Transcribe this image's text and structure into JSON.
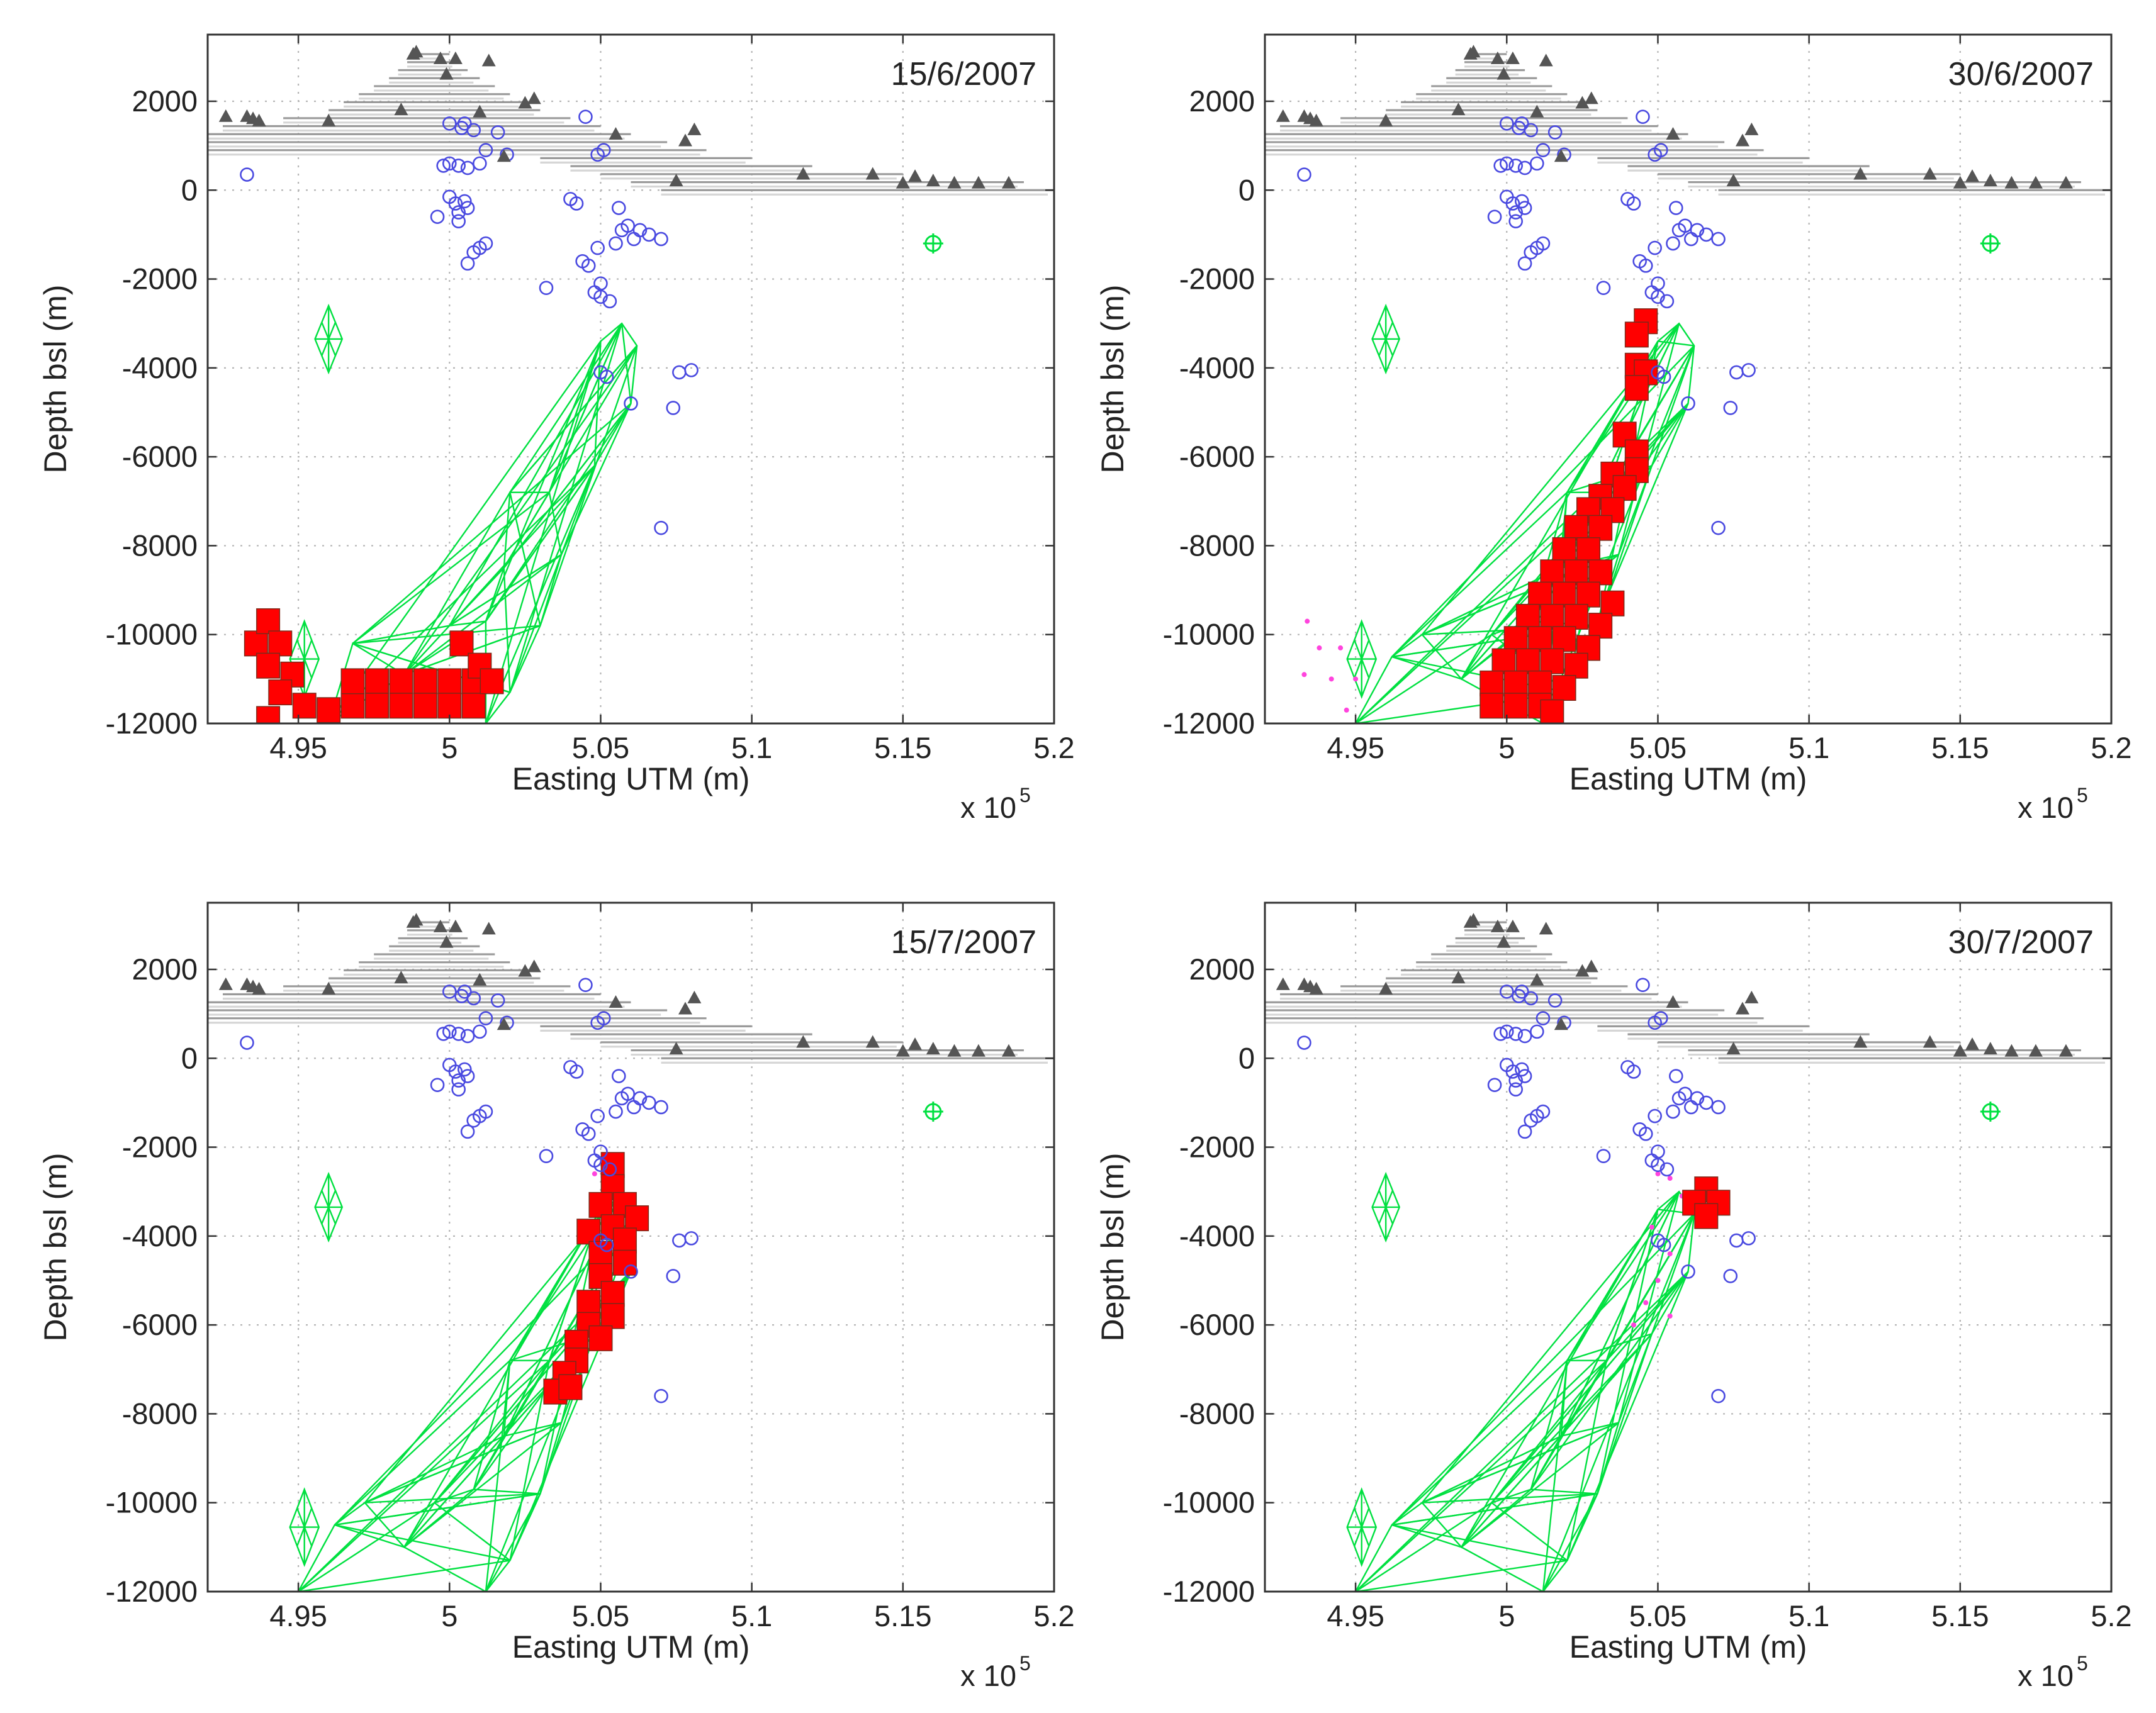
{
  "chart_data": [
    {
      "type": "scatter",
      "title": "15/6/2007",
      "xlabel": "Easting UTM (m)",
      "ylabel": "Depth bsl (m)",
      "x_scale_label": "x 10",
      "x_scale_exponent": "5",
      "xlim": [
        4.92,
        5.2
      ],
      "ylim": [
        -12000,
        3500
      ],
      "xticks": [
        "4.95",
        "5",
        "5.05",
        "5.1",
        "5.15",
        "5.2"
      ],
      "yticks": [
        "2000",
        "0",
        "-2000",
        "-4000",
        "-6000",
        "-8000",
        "-10000",
        "-12000"
      ],
      "active_cells": [
        {
          "x": 4.936,
          "y": -10200
        },
        {
          "x": 4.94,
          "y": -9700
        },
        {
          "x": 4.944,
          "y": -10200
        },
        {
          "x": 4.94,
          "y": -10700
        },
        {
          "x": 4.948,
          "y": -10900
        },
        {
          "x": 4.944,
          "y": -11300
        },
        {
          "x": 4.952,
          "y": -11600
        },
        {
          "x": 4.94,
          "y": -11900
        },
        {
          "x": 4.96,
          "y": -11700
        },
        {
          "x": 4.968,
          "y": -11600
        },
        {
          "x": 4.968,
          "y": -11050
        },
        {
          "x": 4.976,
          "y": -11050
        },
        {
          "x": 4.976,
          "y": -11600
        },
        {
          "x": 4.984,
          "y": -11050
        },
        {
          "x": 4.984,
          "y": -11600
        },
        {
          "x": 4.992,
          "y": -11050
        },
        {
          "x": 4.992,
          "y": -11600
        },
        {
          "x": 5.0,
          "y": -11050
        },
        {
          "x": 5.0,
          "y": -11600
        },
        {
          "x": 5.008,
          "y": -11050
        },
        {
          "x": 5.008,
          "y": -11600
        },
        {
          "x": 5.004,
          "y": -10200
        },
        {
          "x": 5.01,
          "y": -10700
        },
        {
          "x": 5.014,
          "y": -11050
        }
      ],
      "body_outline": [
        [
          4.96,
          -12000
        ],
        [
          4.968,
          -10200
        ],
        [
          4.985,
          -10900
        ],
        [
          5.0,
          -9800
        ],
        [
          5.012,
          -9700
        ],
        [
          5.018,
          -8500
        ],
        [
          5.02,
          -6800
        ],
        [
          5.033,
          -6800
        ],
        [
          5.05,
          -3400
        ],
        [
          5.057,
          -3000
        ],
        [
          5.062,
          -3500
        ],
        [
          5.06,
          -4800
        ],
        [
          5.048,
          -6200
        ],
        [
          5.037,
          -8200
        ],
        [
          5.03,
          -9800
        ],
        [
          5.02,
          -11300
        ],
        [
          5.012,
          -12000
        ]
      ],
      "pink_points": []
    },
    {
      "type": "scatter",
      "title": "30/6/2007",
      "xlabel": "Easting UTM (m)",
      "ylabel": "Depth bsl (m)",
      "x_scale_label": "x 10",
      "x_scale_exponent": "5",
      "xlim": [
        4.92,
        5.2
      ],
      "ylim": [
        -12000,
        3500
      ],
      "xticks": [
        "4.95",
        "5",
        "5.05",
        "5.1",
        "5.15",
        "5.2"
      ],
      "yticks": [
        "2000",
        "0",
        "-2000",
        "-4000",
        "-6000",
        "-8000",
        "-10000",
        "-12000"
      ],
      "active_cells": [
        {
          "x": 5.046,
          "y": -2950
        },
        {
          "x": 5.043,
          "y": -3250
        },
        {
          "x": 5.043,
          "y": -3950
        },
        {
          "x": 5.046,
          "y": -4100
        },
        {
          "x": 5.043,
          "y": -4450
        },
        {
          "x": 5.039,
          "y": -5500
        },
        {
          "x": 5.043,
          "y": -5900
        },
        {
          "x": 5.043,
          "y": -6300
        },
        {
          "x": 5.035,
          "y": -6400
        },
        {
          "x": 5.039,
          "y": -6700
        },
        {
          "x": 5.031,
          "y": -6900
        },
        {
          "x": 5.027,
          "y": -7200
        },
        {
          "x": 5.035,
          "y": -7200
        },
        {
          "x": 5.023,
          "y": -7600
        },
        {
          "x": 5.031,
          "y": -7600
        },
        {
          "x": 5.019,
          "y": -8100
        },
        {
          "x": 5.027,
          "y": -8100
        },
        {
          "x": 5.015,
          "y": -8600
        },
        {
          "x": 5.023,
          "y": -8600
        },
        {
          "x": 5.031,
          "y": -8600
        },
        {
          "x": 5.011,
          "y": -9100
        },
        {
          "x": 5.019,
          "y": -9100
        },
        {
          "x": 5.027,
          "y": -9100
        },
        {
          "x": 5.035,
          "y": -9300
        },
        {
          "x": 5.007,
          "y": -9600
        },
        {
          "x": 5.015,
          "y": -9600
        },
        {
          "x": 5.023,
          "y": -9600
        },
        {
          "x": 5.031,
          "y": -9800
        },
        {
          "x": 5.003,
          "y": -10100
        },
        {
          "x": 5.011,
          "y": -10100
        },
        {
          "x": 5.019,
          "y": -10100
        },
        {
          "x": 5.027,
          "y": -10300
        },
        {
          "x": 4.999,
          "y": -10600
        },
        {
          "x": 5.007,
          "y": -10600
        },
        {
          "x": 5.015,
          "y": -10600
        },
        {
          "x": 5.023,
          "y": -10700
        },
        {
          "x": 4.995,
          "y": -11100
        },
        {
          "x": 5.003,
          "y": -11100
        },
        {
          "x": 5.011,
          "y": -11100
        },
        {
          "x": 5.019,
          "y": -11200
        },
        {
          "x": 4.995,
          "y": -11600
        },
        {
          "x": 5.003,
          "y": -11600
        },
        {
          "x": 5.011,
          "y": -11600
        },
        {
          "x": 5.015,
          "y": -11750
        }
      ],
      "body_outline": [
        [
          4.95,
          -12000
        ],
        [
          4.962,
          -10500
        ],
        [
          4.972,
          -10000
        ],
        [
          4.985,
          -11000
        ],
        [
          4.995,
          -10000
        ],
        [
          5.008,
          -9700
        ],
        [
          5.018,
          -8500
        ],
        [
          5.02,
          -6800
        ],
        [
          5.033,
          -6800
        ],
        [
          5.05,
          -3400
        ],
        [
          5.057,
          -3000
        ],
        [
          5.062,
          -3500
        ],
        [
          5.06,
          -4800
        ],
        [
          5.048,
          -6200
        ],
        [
          5.037,
          -8200
        ],
        [
          5.03,
          -9800
        ],
        [
          5.02,
          -11300
        ],
        [
          5.012,
          -12000
        ]
      ],
      "pink_points": [
        [
          4.934,
          -9700
        ],
        [
          4.938,
          -10300
        ],
        [
          4.945,
          -10300
        ],
        [
          4.933,
          -10900
        ],
        [
          4.942,
          -11000
        ],
        [
          4.95,
          -11000
        ],
        [
          4.947,
          -11700
        ]
      ]
    },
    {
      "type": "scatter",
      "title": "15/7/2007",
      "xlabel": "Easting UTM (m)",
      "ylabel": "Depth bsl (m)",
      "x_scale_label": "x 10",
      "x_scale_exponent": "5",
      "xlim": [
        4.92,
        5.2
      ],
      "ylim": [
        -12000,
        3500
      ],
      "xticks": [
        "4.95",
        "5",
        "5.05",
        "5.1",
        "5.15",
        "5.2"
      ],
      "yticks": [
        "2000",
        "0",
        "-2000",
        "-4000",
        "-6000",
        "-8000",
        "-10000",
        "-12000"
      ],
      "active_cells": [
        {
          "x": 5.054,
          "y": -2400
        },
        {
          "x": 5.054,
          "y": -2900
        },
        {
          "x": 5.058,
          "y": -3300
        },
        {
          "x": 5.05,
          "y": -3300
        },
        {
          "x": 5.062,
          "y": -3600
        },
        {
          "x": 5.054,
          "y": -3800
        },
        {
          "x": 5.046,
          "y": -3900
        },
        {
          "x": 5.058,
          "y": -4100
        },
        {
          "x": 5.05,
          "y": -4400
        },
        {
          "x": 5.058,
          "y": -4600
        },
        {
          "x": 5.05,
          "y": -4900
        },
        {
          "x": 5.054,
          "y": -5300
        },
        {
          "x": 5.046,
          "y": -5500
        },
        {
          "x": 5.054,
          "y": -5800
        },
        {
          "x": 5.046,
          "y": -6000
        },
        {
          "x": 5.042,
          "y": -6400
        },
        {
          "x": 5.05,
          "y": -6300
        },
        {
          "x": 5.042,
          "y": -6800
        },
        {
          "x": 5.038,
          "y": -7100
        },
        {
          "x": 5.035,
          "y": -7500
        },
        {
          "x": 5.04,
          "y": -7400
        }
      ],
      "body_outline": [
        [
          4.95,
          -12000
        ],
        [
          4.962,
          -10500
        ],
        [
          4.972,
          -10000
        ],
        [
          4.985,
          -11000
        ],
        [
          4.995,
          -10000
        ],
        [
          5.008,
          -9700
        ],
        [
          5.018,
          -8500
        ],
        [
          5.02,
          -6800
        ],
        [
          5.033,
          -6800
        ],
        [
          5.05,
          -3400
        ],
        [
          5.057,
          -3000
        ],
        [
          5.062,
          -3500
        ],
        [
          5.06,
          -4800
        ],
        [
          5.048,
          -6200
        ],
        [
          5.037,
          -8200
        ],
        [
          5.03,
          -9800
        ],
        [
          5.02,
          -11300
        ],
        [
          5.012,
          -12000
        ]
      ],
      "pink_points": [
        [
          5.048,
          -2600
        ],
        [
          5.052,
          -2600
        ]
      ]
    },
    {
      "type": "scatter",
      "title": "30/7/2007",
      "xlabel": "Easting UTM (m)",
      "ylabel": "Depth bsl (m)",
      "x_scale_label": "x 10",
      "x_scale_exponent": "5",
      "xlim": [
        4.92,
        5.2
      ],
      "ylim": [
        -12000,
        3500
      ],
      "xticks": [
        "4.95",
        "5",
        "5.05",
        "5.1",
        "5.15",
        "5.2"
      ],
      "yticks": [
        "2000",
        "0",
        "-2000",
        "-4000",
        "-6000",
        "-8000",
        "-10000",
        "-12000"
      ],
      "active_cells": [
        {
          "x": 5.066,
          "y": -2950
        },
        {
          "x": 5.07,
          "y": -3250
        },
        {
          "x": 5.062,
          "y": -3250
        },
        {
          "x": 5.066,
          "y": -3550
        }
      ],
      "body_outline": [
        [
          4.95,
          -12000
        ],
        [
          4.962,
          -10500
        ],
        [
          4.972,
          -10000
        ],
        [
          4.985,
          -11000
        ],
        [
          4.995,
          -10000
        ],
        [
          5.008,
          -9700
        ],
        [
          5.018,
          -8500
        ],
        [
          5.02,
          -6800
        ],
        [
          5.033,
          -6800
        ],
        [
          5.05,
          -3400
        ],
        [
          5.057,
          -3000
        ],
        [
          5.062,
          -3500
        ],
        [
          5.06,
          -4800
        ],
        [
          5.048,
          -6200
        ],
        [
          5.037,
          -8200
        ],
        [
          5.03,
          -9800
        ],
        [
          5.02,
          -11300
        ],
        [
          5.012,
          -12000
        ]
      ],
      "pink_points": [
        [
          5.05,
          -2600
        ],
        [
          5.054,
          -2700
        ],
        [
          5.058,
          -3100
        ],
        [
          5.048,
          -3800
        ],
        [
          5.054,
          -4400
        ],
        [
          5.05,
          -5000
        ],
        [
          5.046,
          -5500
        ],
        [
          5.054,
          -5800
        ],
        [
          5.042,
          -6000
        ]
      ]
    }
  ],
  "shared_series": {
    "stations": [
      [
        4.926,
        1650
      ],
      [
        4.933,
        1650
      ],
      [
        4.935,
        1600
      ],
      [
        4.937,
        1550
      ],
      [
        4.96,
        1550
      ],
      [
        4.984,
        1800
      ],
      [
        4.988,
        3050
      ],
      [
        4.989,
        3100
      ],
      [
        4.997,
        2950
      ],
      [
        4.999,
        2600
      ],
      [
        5.002,
        2950
      ],
      [
        5.01,
        1750
      ],
      [
        5.013,
        2900
      ],
      [
        5.018,
        750
      ],
      [
        5.025,
        1950
      ],
      [
        5.028,
        2050
      ],
      [
        5.055,
        1250
      ],
      [
        5.078,
        1100
      ],
      [
        5.081,
        1350
      ],
      [
        5.117,
        350
      ],
      [
        5.14,
        350
      ],
      [
        5.15,
        150
      ],
      [
        5.154,
        300
      ],
      [
        5.16,
        200
      ],
      [
        5.167,
        150
      ],
      [
        5.175,
        150
      ],
      [
        5.185,
        150
      ],
      [
        5.075,
        200
      ]
    ],
    "station_color": "#555555",
    "topography_layers": [
      {
        "y": 0,
        "x0": 5.07,
        "x1": 5.2
      },
      {
        "y": 180,
        "x0": 5.06,
        "x1": 5.19
      },
      {
        "y": 360,
        "x0": 5.05,
        "x1": 5.15
      },
      {
        "y": 540,
        "x0": 5.04,
        "x1": 5.12
      },
      {
        "y": 720,
        "x0": 5.03,
        "x1": 5.1
      },
      {
        "y": 900,
        "x0": 4.92,
        "x1": 5.085
      },
      {
        "y": 1080,
        "x0": 4.92,
        "x1": 5.072
      },
      {
        "y": 1260,
        "x0": 4.92,
        "x1": 5.06
      },
      {
        "y": 1440,
        "x0": 4.925,
        "x1": 5.05
      },
      {
        "y": 1620,
        "x0": 4.945,
        "x1": 5.04
      },
      {
        "y": 1800,
        "x0": 4.96,
        "x1": 5.03
      },
      {
        "y": 1980,
        "x0": 4.965,
        "x1": 5.025
      },
      {
        "y": 2160,
        "x0": 4.97,
        "x1": 5.02
      },
      {
        "y": 2340,
        "x0": 4.975,
        "x1": 5.015
      },
      {
        "y": 2520,
        "x0": 4.98,
        "x1": 5.01
      },
      {
        "y": 2700,
        "x0": 4.983,
        "x1": 5.006
      },
      {
        "y": 2880,
        "x0": 4.986,
        "x1": 5.003
      },
      {
        "y": 3060,
        "x0": 4.988,
        "x1": 5.0
      }
    ],
    "topography_color": "#9a9a9a",
    "earthquakes": [
      [
        4.933,
        350
      ],
      [
        5.0,
        1500
      ],
      [
        5.004,
        1400
      ],
      [
        5.008,
        1350
      ],
      [
        5.005,
        1500
      ],
      [
        5.016,
        1300
      ],
      [
        5.045,
        1650
      ],
      [
        5.0,
        600
      ],
      [
        4.998,
        550
      ],
      [
        5.003,
        550
      ],
      [
        5.006,
        500
      ],
      [
        5.01,
        600
      ],
      [
        5.019,
        800
      ],
      [
        5.012,
        900
      ],
      [
        5.0,
        -150
      ],
      [
        5.002,
        -300
      ],
      [
        5.005,
        -250
      ],
      [
        5.003,
        -500
      ],
      [
        5.006,
        -400
      ],
      [
        4.996,
        -600
      ],
      [
        5.003,
        -700
      ],
      [
        5.01,
        -1300
      ],
      [
        5.012,
        -1200
      ],
      [
        5.008,
        -1400
      ],
      [
        5.006,
        -1650
      ],
      [
        5.032,
        -2200
      ],
      [
        5.04,
        -200
      ],
      [
        5.042,
        -300
      ],
      [
        5.044,
        -1600
      ],
      [
        5.046,
        -1700
      ],
      [
        5.049,
        -1300
      ],
      [
        5.05,
        -2100
      ],
      [
        5.048,
        -2300
      ],
      [
        5.05,
        -2400
      ],
      [
        5.056,
        -400
      ],
      [
        5.057,
        -900
      ],
      [
        5.059,
        -800
      ],
      [
        5.061,
        -1100
      ],
      [
        5.063,
        -900
      ],
      [
        5.066,
        -1000
      ],
      [
        5.07,
        -1100
      ],
      [
        5.049,
        800
      ],
      [
        5.051,
        900
      ],
      [
        5.055,
        -1200
      ],
      [
        5.053,
        -2500
      ],
      [
        5.05,
        -4100
      ],
      [
        5.052,
        -4200
      ],
      [
        5.06,
        -4800
      ],
      [
        5.076,
        -4100
      ],
      [
        5.08,
        -4050
      ],
      [
        5.074,
        -4900
      ],
      [
        5.07,
        -7600
      ]
    ],
    "earthquake_color": "#4a4ae0",
    "upper_body": {
      "x": 4.96,
      "y_top": -2600,
      "y_bot": -4100,
      "half_width": 0.0045
    },
    "lower_body": {
      "x": 4.952,
      "y_top": -9700,
      "y_bot": -11400,
      "half_width": 0.0048
    },
    "green_target": {
      "x": 5.16,
      "y": -1200
    },
    "body_color": "#00e040",
    "active_color": "#ff0000",
    "pink_color": "#ff44dd"
  }
}
